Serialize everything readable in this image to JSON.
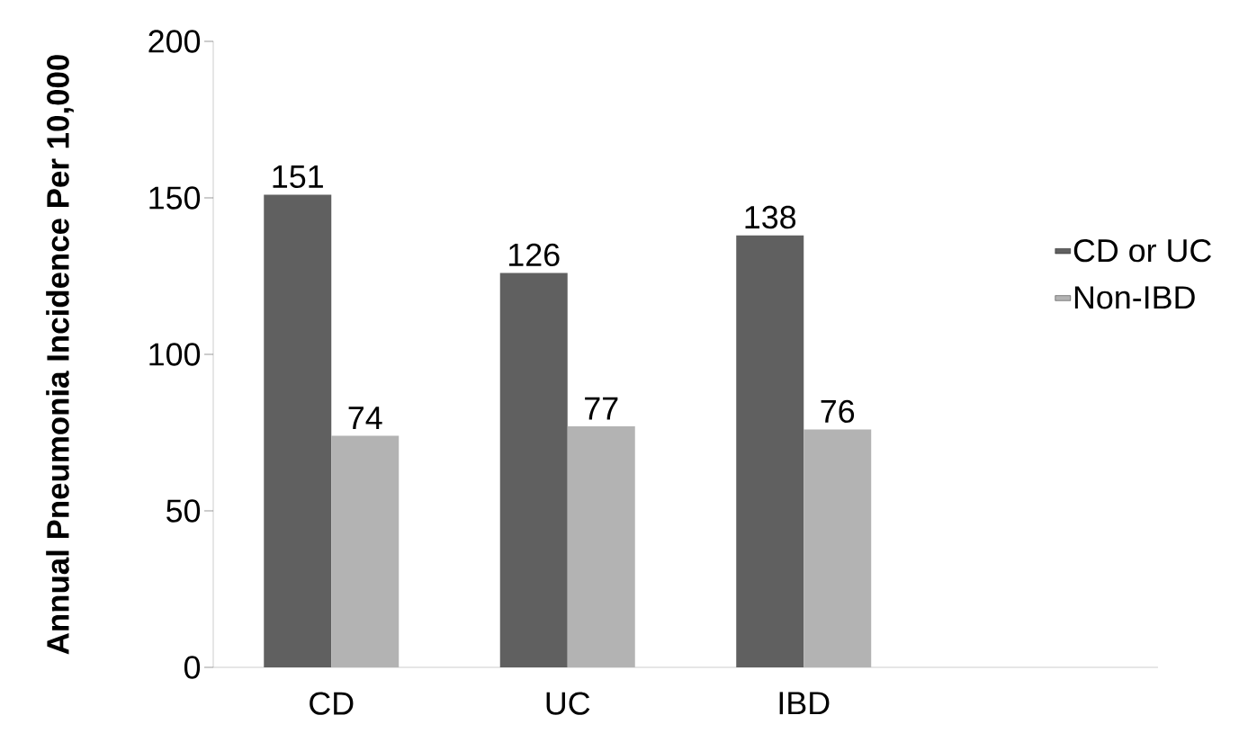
{
  "chart_data": {
    "type": "bar",
    "ylabel": "Annual Pneumonia Incidence Per 10,000",
    "categories": [
      "CD",
      "UC",
      "IBD",
      null
    ],
    "series": [
      {
        "name": "CD or UC",
        "color": "#606060",
        "values": [
          151,
          126,
          138,
          null
        ]
      },
      {
        "name": "Non-IBD",
        "color": "#b3b3b3",
        "values": [
          74,
          77,
          76,
          null
        ]
      }
    ],
    "ylim": [
      0,
      200
    ],
    "yticks": [
      0,
      50,
      100,
      150,
      200
    ],
    "grid": false,
    "legend": "right",
    "data_labels": true
  }
}
